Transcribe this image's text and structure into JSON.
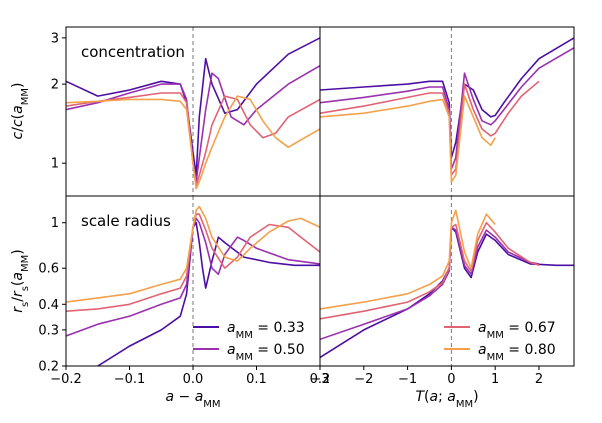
{
  "colors": {
    "0.33": "#4d0fa3",
    "0.50": "#9a31b0",
    "0.67": "#e06473",
    "0.80": "#f5a04a",
    "reference_line": "#7a7a7a"
  },
  "chart_data": [
    {
      "type": "line",
      "panel": "top-left",
      "label": "concentration",
      "ylabel": "c/c(a_MM)",
      "yscale": "log",
      "xlim": [
        -0.2,
        0.2
      ],
      "ylim": [
        0.75,
        3.3
      ],
      "yticks": [
        1,
        2,
        3
      ],
      "series": [
        {
          "name": "0.33",
          "x": [
            -0.2,
            -0.15,
            -0.1,
            -0.05,
            -0.02,
            -0.01,
            0,
            0.005,
            0.01,
            0.02,
            0.03,
            0.05,
            0.07,
            0.1,
            0.15,
            0.2
          ],
          "y": [
            2.05,
            1.8,
            1.9,
            2.05,
            2.0,
            1.7,
            1.1,
            0.9,
            1.5,
            2.5,
            2.0,
            1.55,
            1.6,
            2.0,
            2.6,
            3.0
          ]
        },
        {
          "name": "0.50",
          "x": [
            -0.2,
            -0.15,
            -0.1,
            -0.05,
            -0.02,
            -0.01,
            0,
            0.005,
            0.01,
            0.02,
            0.03,
            0.04,
            0.06,
            0.08,
            0.1,
            0.15,
            0.2
          ],
          "y": [
            1.6,
            1.7,
            1.85,
            2.0,
            2.0,
            1.75,
            1.0,
            0.85,
            1.05,
            1.6,
            2.2,
            2.1,
            1.5,
            1.4,
            1.6,
            2.0,
            2.35
          ]
        },
        {
          "name": "0.67",
          "x": [
            -0.2,
            -0.15,
            -0.1,
            -0.05,
            -0.02,
            -0.01,
            0,
            0.005,
            0.01,
            0.02,
            0.03,
            0.05,
            0.07,
            0.09,
            0.11,
            0.13,
            0.15,
            0.2
          ],
          "y": [
            1.65,
            1.72,
            1.78,
            1.85,
            1.85,
            1.7,
            1.0,
            0.82,
            0.9,
            1.1,
            1.4,
            1.8,
            1.75,
            1.4,
            1.25,
            1.3,
            1.5,
            1.75
          ]
        },
        {
          "name": "0.80",
          "x": [
            -0.2,
            -0.15,
            -0.1,
            -0.05,
            -0.02,
            -0.01,
            0,
            0.005,
            0.01,
            0.02,
            0.03,
            0.05,
            0.07,
            0.09,
            0.11,
            0.13,
            0.15,
            0.2
          ],
          "y": [
            1.7,
            1.72,
            1.75,
            1.75,
            1.72,
            1.6,
            1.0,
            0.8,
            0.85,
            1.0,
            1.15,
            1.5,
            1.8,
            1.75,
            1.45,
            1.25,
            1.15,
            1.35
          ]
        }
      ]
    },
    {
      "type": "line",
      "panel": "top-right",
      "ylabel": "",
      "yscale": "log",
      "xlim": [
        -3.0,
        2.8
      ],
      "ylim": [
        0.75,
        3.3
      ],
      "series": [
        {
          "name": "0.33",
          "x": [
            -3.0,
            -2.0,
            -1.0,
            -0.5,
            -0.2,
            -0.05,
            0,
            0.1,
            0.3,
            0.5,
            0.7,
            0.9,
            1.0,
            1.2,
            1.6,
            2.0,
            2.8
          ],
          "y": [
            1.9,
            1.95,
            2.0,
            2.05,
            2.05,
            1.7,
            1.05,
            1.2,
            2.0,
            1.9,
            1.6,
            1.5,
            1.52,
            1.7,
            2.1,
            2.5,
            3.0
          ]
        },
        {
          "name": "0.50",
          "x": [
            -3.0,
            -2.0,
            -1.0,
            -0.5,
            -0.2,
            -0.05,
            0,
            0.1,
            0.3,
            0.5,
            0.7,
            0.9,
            1.0,
            1.2,
            1.6,
            2.0,
            2.8
          ],
          "y": [
            1.7,
            1.78,
            1.88,
            1.95,
            1.95,
            1.6,
            0.95,
            1.05,
            2.2,
            1.75,
            1.45,
            1.4,
            1.45,
            1.6,
            1.95,
            2.3,
            2.75
          ]
        },
        {
          "name": "0.67",
          "x": [
            -3.0,
            -2.0,
            -1.0,
            -0.5,
            -0.2,
            -0.05,
            0,
            0.1,
            0.3,
            0.5,
            0.7,
            0.9,
            1.0,
            1.3,
            1.6,
            2.0
          ],
          "y": [
            1.55,
            1.65,
            1.78,
            1.85,
            1.85,
            1.55,
            0.9,
            0.95,
            2.0,
            1.6,
            1.35,
            1.27,
            1.3,
            1.55,
            1.8,
            2.05
          ]
        },
        {
          "name": "0.80",
          "x": [
            -3.0,
            -2.0,
            -1.0,
            -0.5,
            -0.2,
            -0.05,
            0,
            0.1,
            0.3,
            0.5,
            0.7,
            0.9,
            1.0
          ],
          "y": [
            1.5,
            1.55,
            1.65,
            1.72,
            1.75,
            1.5,
            0.85,
            0.9,
            1.8,
            1.5,
            1.25,
            1.17,
            1.25
          ]
        }
      ]
    },
    {
      "type": "line",
      "panel": "bottom-left",
      "label": "scale radius",
      "xlabel": "a − a_MM",
      "ylabel": "r_s/r_s(a_MM)",
      "yscale": "log",
      "xlim": [
        -0.2,
        0.2
      ],
      "ylim": [
        0.2,
        1.35
      ],
      "xticks": [
        -0.2,
        -0.1,
        0.0,
        0.1,
        0.2
      ],
      "xticklabels": [
        "−0.2",
        "−0.1",
        "0.0",
        "0.1",
        "0.2"
      ],
      "yticks": [
        0.2,
        0.3,
        0.4,
        0.6,
        1
      ],
      "yticklabels": [
        "0.2",
        "0.3",
        "0.4",
        "0.6",
        "1"
      ],
      "series": [
        {
          "name": "0.33",
          "x": [
            -0.15,
            -0.1,
            -0.05,
            -0.02,
            -0.01,
            0,
            0.005,
            0.01,
            0.015,
            0.02,
            0.03,
            0.04,
            0.05,
            0.08,
            0.12,
            0.16,
            0.2
          ],
          "y": [
            0.2,
            0.25,
            0.3,
            0.35,
            0.45,
            0.95,
            1.0,
            0.8,
            0.6,
            0.48,
            0.65,
            0.85,
            0.8,
            0.68,
            0.64,
            0.62,
            0.62
          ]
        },
        {
          "name": "0.50",
          "x": [
            -0.2,
            -0.15,
            -0.1,
            -0.05,
            -0.02,
            -0.01,
            0,
            0.005,
            0.01,
            0.02,
            0.03,
            0.04,
            0.05,
            0.07,
            0.08,
            0.1,
            0.15,
            0.2
          ],
          "y": [
            0.28,
            0.32,
            0.35,
            0.4,
            0.43,
            0.5,
            0.95,
            1.05,
            1.0,
            0.8,
            0.6,
            0.56,
            0.7,
            0.85,
            0.82,
            0.75,
            0.66,
            0.63
          ]
        },
        {
          "name": "0.67",
          "x": [
            -0.2,
            -0.15,
            -0.1,
            -0.05,
            -0.02,
            -0.01,
            0,
            0.005,
            0.01,
            0.02,
            0.03,
            0.05,
            0.07,
            0.09,
            0.12,
            0.15,
            0.17,
            0.2
          ],
          "y": [
            0.37,
            0.38,
            0.4,
            0.45,
            0.48,
            0.55,
            0.95,
            1.1,
            1.1,
            0.92,
            0.75,
            0.6,
            0.68,
            0.85,
            0.98,
            0.95,
            0.85,
            0.72
          ]
        },
        {
          "name": "0.80",
          "x": [
            -0.2,
            -0.15,
            -0.1,
            -0.05,
            -0.02,
            -0.01,
            0,
            0.005,
            0.01,
            0.02,
            0.03,
            0.05,
            0.07,
            0.09,
            0.12,
            0.15,
            0.17,
            0.2
          ],
          "y": [
            0.41,
            0.43,
            0.45,
            0.5,
            0.53,
            0.6,
            0.95,
            1.15,
            1.2,
            1.05,
            0.85,
            0.68,
            0.65,
            0.75,
            0.9,
            1.02,
            1.05,
            0.95
          ]
        }
      ]
    },
    {
      "type": "line",
      "panel": "bottom-right",
      "xlabel": "T(a; a_MM)",
      "ylabel": "",
      "yscale": "log",
      "xlim": [
        -3.0,
        2.8
      ],
      "ylim": [
        0.2,
        1.35
      ],
      "xticks": [
        -3,
        -2,
        -1,
        0,
        1,
        2
      ],
      "xticklabels": [
        "−3",
        "−2",
        "−1",
        "0",
        "1",
        "2"
      ],
      "series": [
        {
          "name": "0.33",
          "x": [
            -3.0,
            -2.0,
            -1.0,
            -0.5,
            -0.2,
            -0.05,
            0,
            0.1,
            0.3,
            0.45,
            0.6,
            0.8,
            1.0,
            1.3,
            1.8,
            2.4,
            2.8
          ],
          "y": [
            0.22,
            0.3,
            0.38,
            0.45,
            0.52,
            0.6,
            0.95,
            0.9,
            0.6,
            0.54,
            0.72,
            0.88,
            0.82,
            0.7,
            0.63,
            0.62,
            0.62
          ]
        },
        {
          "name": "0.50",
          "x": [
            -3.0,
            -2.0,
            -1.0,
            -0.5,
            -0.2,
            -0.05,
            0,
            0.1,
            0.3,
            0.45,
            0.6,
            0.8,
            1.0,
            1.3,
            1.8,
            2.0
          ],
          "y": [
            0.27,
            0.32,
            0.38,
            0.44,
            0.5,
            0.58,
            0.95,
            0.92,
            0.62,
            0.56,
            0.76,
            0.92,
            0.85,
            0.72,
            0.64,
            0.63
          ]
        },
        {
          "name": "0.67",
          "x": [
            -3.0,
            -2.0,
            -1.0,
            -0.5,
            -0.2,
            -0.05,
            0,
            0.1,
            0.3,
            0.45,
            0.6,
            0.8,
            1.0,
            1.3,
            1.8,
            2.0
          ],
          "y": [
            0.34,
            0.37,
            0.41,
            0.46,
            0.51,
            0.6,
            0.95,
            0.98,
            0.65,
            0.58,
            0.82,
            1.0,
            0.9,
            0.75,
            0.64,
            0.62
          ]
        },
        {
          "name": "0.80",
          "x": [
            -3.0,
            -2.0,
            -1.0,
            -0.5,
            -0.2,
            -0.05,
            0,
            0.1,
            0.3,
            0.45,
            0.6,
            0.8,
            1.0
          ],
          "y": [
            0.38,
            0.41,
            0.45,
            0.5,
            0.55,
            0.65,
            1.0,
            1.15,
            0.72,
            0.6,
            0.88,
            1.1,
            0.98
          ]
        }
      ]
    }
  ],
  "legend": {
    "left": [
      {
        "key": "0.33",
        "prefix": "a",
        "sub": "MM",
        "value": " = 0.33"
      },
      {
        "key": "0.50",
        "prefix": "a",
        "sub": "MM",
        "value": " = 0.50"
      }
    ],
    "right": [
      {
        "key": "0.67",
        "prefix": "a",
        "sub": "MM",
        "value": " = 0.67"
      },
      {
        "key": "0.80",
        "prefix": "a",
        "sub": "MM",
        "value": " = 0.80"
      }
    ]
  }
}
